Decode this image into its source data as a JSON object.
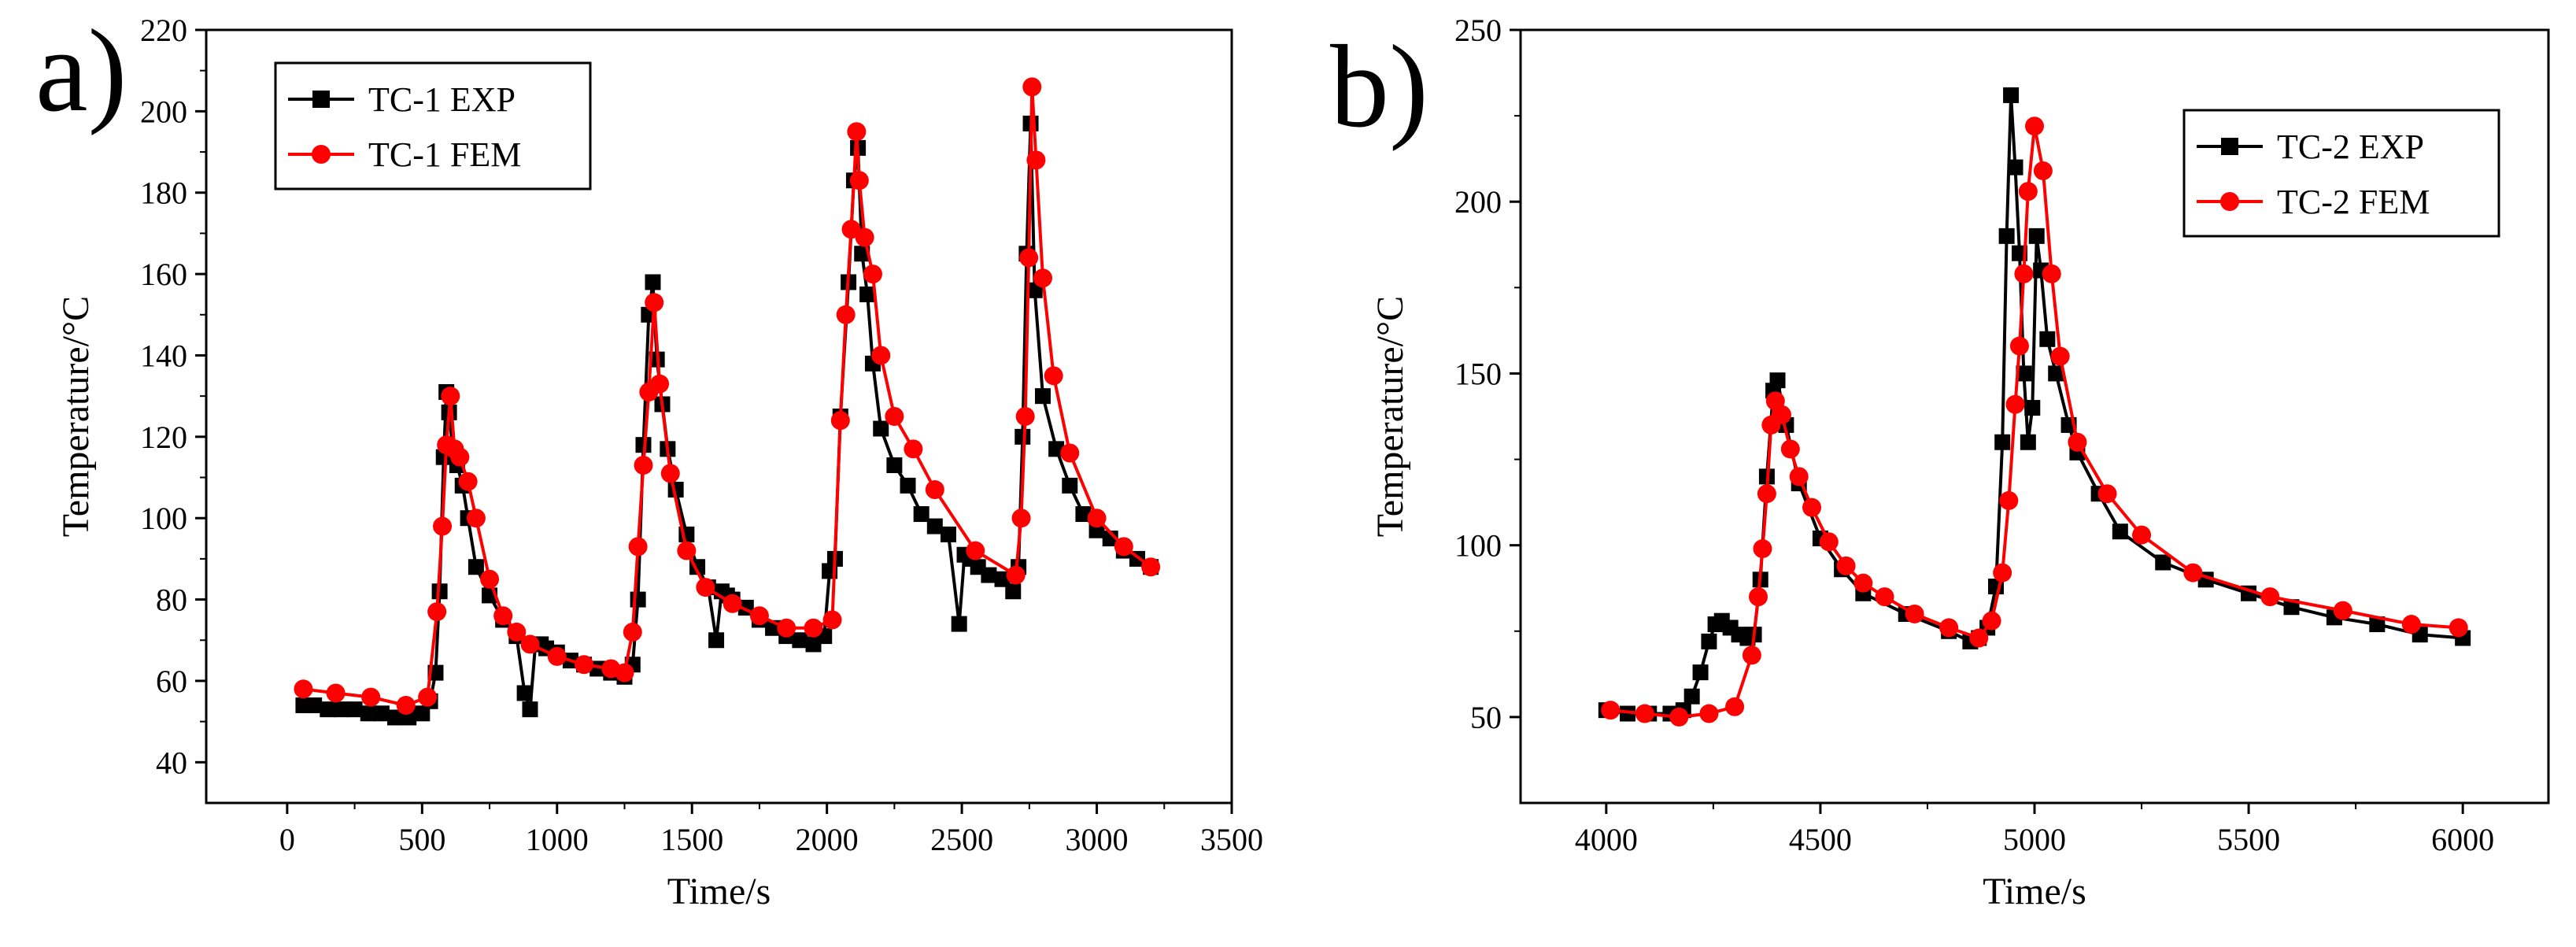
{
  "chart_data": [
    {
      "type": "line",
      "panel_label": "a)",
      "title": "",
      "xlabel": "Time/s",
      "ylabel": "Temperature/°C",
      "xlim": [
        -300,
        3500
      ],
      "ylim": [
        30,
        220
      ],
      "xticks": [
        0,
        500,
        1000,
        1500,
        2000,
        2500,
        3000,
        3500
      ],
      "yticks": [
        40,
        60,
        80,
        100,
        120,
        140,
        160,
        180,
        200,
        220
      ],
      "legend_position": "top-left",
      "series": [
        {
          "name": "TC-1 EXP",
          "color": "#000000",
          "marker": "square",
          "x": [
            60,
            100,
            150,
            200,
            250,
            300,
            350,
            400,
            450,
            500,
            530,
            550,
            565,
            580,
            590,
            600,
            615,
            630,
            650,
            670,
            700,
            750,
            800,
            850,
            880,
            900,
            920,
            940,
            960,
            1000,
            1050,
            1100,
            1150,
            1200,
            1250,
            1280,
            1300,
            1320,
            1340,
            1355,
            1370,
            1390,
            1410,
            1440,
            1480,
            1520,
            1560,
            1590,
            1610,
            1630,
            1650,
            1700,
            1750,
            1800,
            1850,
            1900,
            1950,
            1990,
            2010,
            2030,
            2050,
            2080,
            2100,
            2115,
            2130,
            2150,
            2170,
            2200,
            2250,
            2300,
            2350,
            2400,
            2450,
            2490,
            2510,
            2530,
            2560,
            2600,
            2650,
            2690,
            2710,
            2725,
            2740,
            2755,
            2770,
            2800,
            2850,
            2900,
            2950,
            3000,
            3050,
            3100,
            3150,
            3200
          ],
          "values": [
            54,
            54,
            53,
            53,
            53,
            52,
            52,
            51,
            51,
            52,
            55,
            62,
            82,
            115,
            131,
            126,
            116,
            113,
            108,
            100,
            88,
            81,
            75,
            71,
            57,
            53,
            69,
            69,
            68,
            67,
            65,
            64,
            63,
            62,
            61,
            64,
            80,
            118,
            150,
            158,
            139,
            128,
            117,
            107,
            96,
            88,
            83,
            70,
            82,
            81,
            80,
            78,
            75,
            73,
            71,
            70,
            69,
            71,
            87,
            90,
            125,
            158,
            183,
            191,
            165,
            155,
            138,
            122,
            113,
            108,
            101,
            98,
            96,
            74,
            91,
            90,
            88,
            86,
            85,
            82,
            88,
            120,
            165,
            197,
            156,
            130,
            117,
            108,
            101,
            97,
            95,
            92,
            90,
            88
          ]
        },
        {
          "name": "TC-1 FEM",
          "color": "#ff0000",
          "marker": "circle",
          "x": [
            60,
            180,
            310,
            440,
            520,
            555,
            575,
            590,
            605,
            620,
            640,
            670,
            700,
            750,
            800,
            850,
            900,
            1000,
            1100,
            1200,
            1250,
            1280,
            1300,
            1320,
            1340,
            1360,
            1380,
            1420,
            1480,
            1550,
            1650,
            1750,
            1850,
            1950,
            2020,
            2050,
            2070,
            2090,
            2110,
            2120,
            2140,
            2170,
            2200,
            2250,
            2320,
            2400,
            2550,
            2700,
            2720,
            2735,
            2748,
            2760,
            2775,
            2800,
            2840,
            2900,
            3000,
            3100,
            3200
          ],
          "values": [
            58,
            57,
            56,
            54,
            56,
            77,
            98,
            118,
            130,
            117,
            115,
            109,
            100,
            85,
            76,
            72,
            69,
            66,
            64,
            63,
            62,
            72,
            93,
            113,
            131,
            153,
            133,
            111,
            92,
            83,
            79,
            76,
            73,
            73,
            75,
            124,
            150,
            171,
            195,
            183,
            169,
            160,
            140,
            125,
            117,
            107,
            92,
            86,
            100,
            125,
            164,
            206,
            188,
            159,
            135,
            116,
            100,
            93,
            88
          ]
        }
      ]
    },
    {
      "type": "line",
      "panel_label": "b)",
      "title": "",
      "xlabel": "Time/s",
      "ylabel": "Temperature/°C",
      "xlim": [
        3800,
        6200
      ],
      "ylim": [
        25,
        250
      ],
      "xticks": [
        4000,
        4500,
        5000,
        5500,
        6000
      ],
      "yticks": [
        50,
        100,
        150,
        200,
        250
      ],
      "legend_position": "top-right",
      "series": [
        {
          "name": "TC-2 EXP",
          "color": "#000000",
          "marker": "square",
          "x": [
            4000,
            4050,
            4100,
            4150,
            4180,
            4200,
            4220,
            4240,
            4255,
            4270,
            4290,
            4310,
            4330,
            4345,
            4360,
            4375,
            4390,
            4400,
            4420,
            4450,
            4500,
            4550,
            4600,
            4700,
            4800,
            4850,
            4870,
            4890,
            4910,
            4925,
            4935,
            4945,
            4955,
            4965,
            4975,
            4985,
            4995,
            5005,
            5015,
            5030,
            5050,
            5080,
            5100,
            5150,
            5200,
            5300,
            5400,
            5500,
            5600,
            5700,
            5800,
            5900,
            6000
          ],
          "values": [
            52,
            51,
            51,
            51,
            52,
            56,
            63,
            72,
            77,
            78,
            76,
            74,
            73,
            74,
            90,
            120,
            145,
            148,
            135,
            118,
            102,
            93,
            86,
            80,
            75,
            72,
            73,
            76,
            88,
            130,
            190,
            231,
            210,
            185,
            150,
            130,
            140,
            190,
            180,
            160,
            150,
            135,
            127,
            115,
            104,
            95,
            90,
            86,
            82,
            79,
            77,
            74,
            73
          ]
        },
        {
          "name": "TC-2 FEM",
          "color": "#ff0000",
          "marker": "circle",
          "x": [
            4010,
            4090,
            4170,
            4240,
            4300,
            4340,
            4355,
            4365,
            4375,
            4385,
            4395,
            4410,
            4430,
            4450,
            4480,
            4520,
            4560,
            4600,
            4650,
            4720,
            4800,
            4870,
            4900,
            4925,
            4940,
            4955,
            4965,
            4975,
            4985,
            5000,
            5020,
            5040,
            5060,
            5100,
            5170,
            5250,
            5370,
            5550,
            5720,
            5880,
            5990
          ],
          "values": [
            52,
            51,
            50,
            51,
            53,
            68,
            85,
            99,
            115,
            135,
            142,
            138,
            128,
            120,
            111,
            101,
            94,
            89,
            85,
            80,
            76,
            73,
            78,
            92,
            113,
            141,
            158,
            179,
            203,
            222,
            209,
            179,
            155,
            130,
            115,
            103,
            92,
            85,
            81,
            77,
            76
          ]
        }
      ]
    }
  ]
}
